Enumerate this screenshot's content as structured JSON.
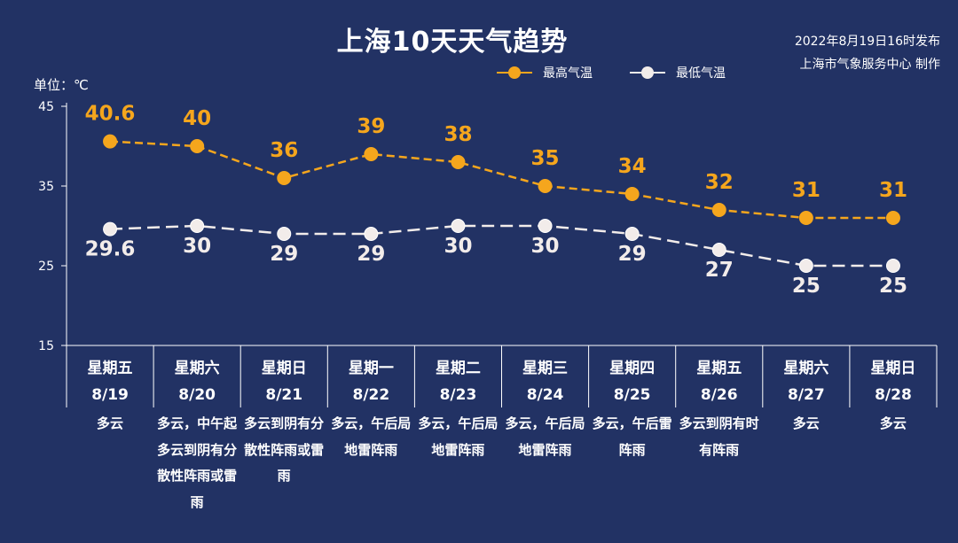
{
  "header": {
    "title": "上海10天天气趋势",
    "publish_time": "2022年8月19日16时发布",
    "publisher": "上海市气象服务中心 制作",
    "unit_label": "单位：℃"
  },
  "colors": {
    "background": "#223264",
    "high": "#F5A61D",
    "low": "#F2ECEA"
  },
  "chart_data": {
    "type": "line",
    "title": "上海10天天气趋势",
    "ylabel": "单位：℃",
    "ylim": [
      15,
      45
    ],
    "yticks": [
      15,
      25,
      35,
      45
    ],
    "grid": false,
    "legend_position": "top",
    "categories": [
      {
        "weekday": "星期五",
        "date": "8/19",
        "condition": "多云"
      },
      {
        "weekday": "星期六",
        "date": "8/20",
        "condition": "多云，中午起多云到阴有分散性阵雨或雷雨"
      },
      {
        "weekday": "星期日",
        "date": "8/21",
        "condition": "多云到阴有分散性阵雨或雷雨"
      },
      {
        "weekday": "星期一",
        "date": "8/22",
        "condition": "多云，午后局地雷阵雨"
      },
      {
        "weekday": "星期二",
        "date": "8/23",
        "condition": "多云，午后局地雷阵雨"
      },
      {
        "weekday": "星期三",
        "date": "8/24",
        "condition": "多云，午后局地雷阵雨"
      },
      {
        "weekday": "星期四",
        "date": "8/25",
        "condition": "多云，午后雷阵雨"
      },
      {
        "weekday": "星期五",
        "date": "8/26",
        "condition": "多云到阴有时有阵雨"
      },
      {
        "weekday": "星期六",
        "date": "8/27",
        "condition": "多云"
      },
      {
        "weekday": "星期日",
        "date": "8/28",
        "condition": "多云"
      }
    ],
    "series": [
      {
        "name": "最高气温",
        "values": [
          40.6,
          40,
          36,
          39,
          38,
          35,
          34,
          32,
          31,
          31
        ],
        "labels": [
          "40.6",
          "40",
          "36",
          "39",
          "38",
          "35",
          "34",
          "32",
          "31",
          "31"
        ]
      },
      {
        "name": "最低气温",
        "values": [
          29.6,
          30,
          29,
          29,
          30,
          30,
          29,
          27,
          25,
          25
        ],
        "labels": [
          "29.6",
          "30",
          "29",
          "29",
          "30",
          "30",
          "29",
          "27",
          "25",
          "25"
        ]
      }
    ]
  }
}
